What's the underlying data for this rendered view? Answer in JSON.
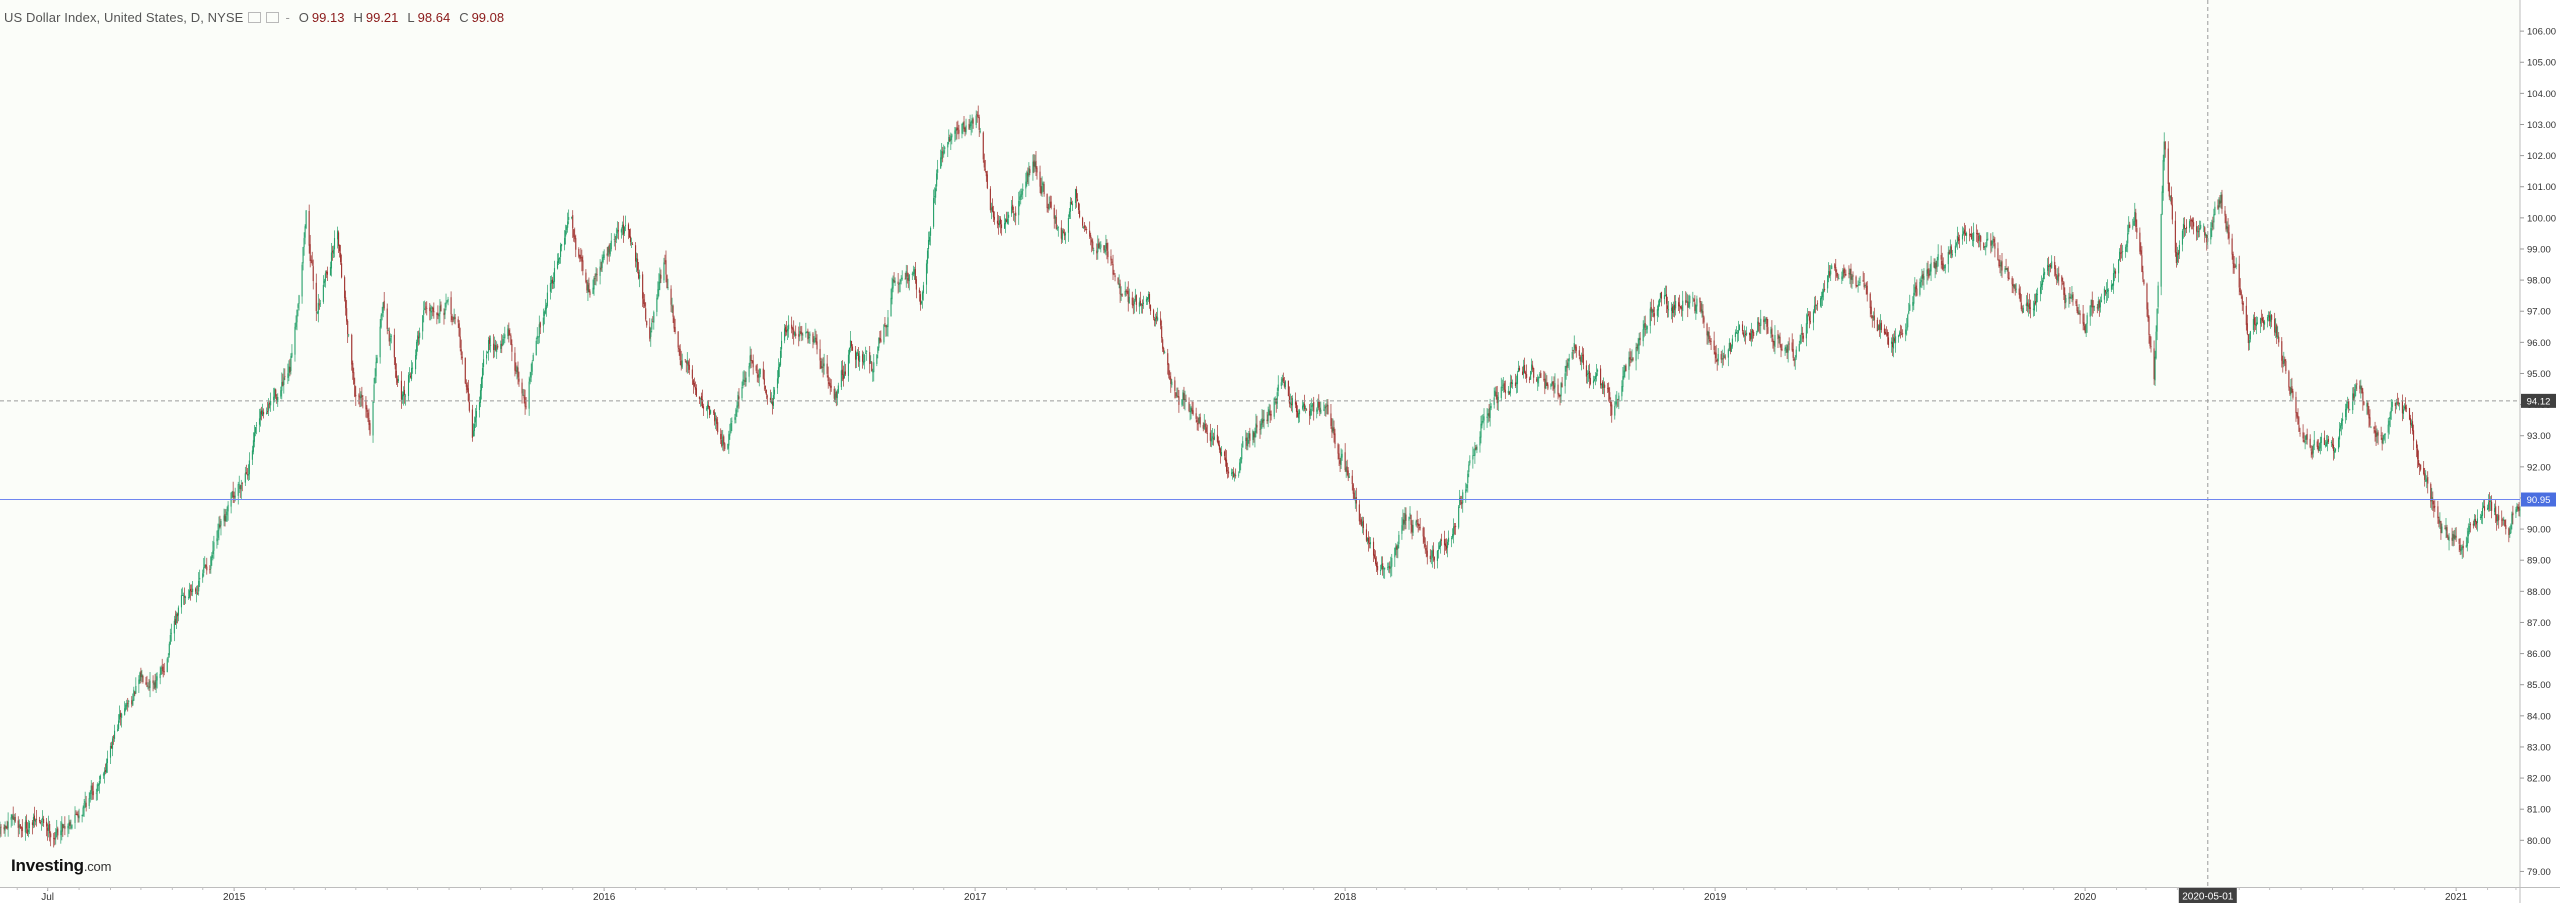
{
  "legend": {
    "title": "US Dollar Index, United States, D, NYSE",
    "open_label": "O",
    "open": "99.13",
    "high_label": "H",
    "high": "99.21",
    "low_label": "L",
    "low": "98.64",
    "close_label": "C",
    "close": "99.08",
    "menu_symbol": "-"
  },
  "branding": {
    "logo_main": "Investing",
    "logo_suffix": ".com"
  },
  "colors": {
    "up": "#26a06a",
    "down": "#a0322f",
    "background": "#fafcf8",
    "crosshair": "#9b9b9b",
    "last_price_line": "#6f86f0",
    "last_price_badge": "#4a6ee0",
    "crosshair_badge": "#404040"
  },
  "chart_data": {
    "type": "candlestick",
    "title": "US Dollar Index, United States, D, NYSE",
    "y_axis_position": "right",
    "ylim": [
      78.5,
      107.0
    ],
    "y_ticks": [
      "79.00",
      "80.00",
      "81.00",
      "82.00",
      "83.00",
      "84.00",
      "85.00",
      "86.00",
      "87.00",
      "88.00",
      "89.00",
      "90.00",
      "91.00",
      "92.00",
      "93.00",
      "94.00",
      "95.00",
      "96.00",
      "97.00",
      "98.00",
      "99.00",
      "100.00",
      "101.00",
      "102.00",
      "103.00",
      "104.00",
      "105.00",
      "106.00"
    ],
    "x_ticks": [
      "Jul",
      "2015",
      "2016",
      "2017",
      "2018",
      "2019",
      "2020",
      "2021"
    ],
    "x_tick_dates": [
      "2014-07-01",
      "2015-01-01",
      "2016-01-01",
      "2017-01-01",
      "2018-01-01",
      "2019-01-01",
      "2020-01-01",
      "2021-01-01"
    ],
    "x_range": [
      "2014-05-15",
      "2021-03-05"
    ],
    "crosshair": {
      "date_label": "2020-05-01",
      "date": "2020-05-01",
      "price_label": "94.12",
      "price": 94.12
    },
    "last_price": {
      "label": "90.95",
      "value": 90.95
    },
    "ohlc_hover": {
      "open": 99.13,
      "high": 99.21,
      "low": 98.64,
      "close": 99.08
    },
    "close_path": [
      [
        "2014-05-15",
        80.2
      ],
      [
        "2014-06-15",
        80.6
      ],
      [
        "2014-07-10",
        80.3
      ],
      [
        "2014-08-15",
        81.6
      ],
      [
        "2014-09-15",
        84.2
      ],
      [
        "2014-10-10",
        85.5
      ],
      [
        "2014-10-20",
        85.2
      ],
      [
        "2014-11-10",
        87.6
      ],
      [
        "2014-12-05",
        88.8
      ],
      [
        "2014-12-25",
        90.2
      ],
      [
        "2015-01-20",
        92.8
      ],
      [
        "2015-02-10",
        94.2
      ],
      [
        "2015-02-25",
        94.8
      ],
      [
        "2015-03-13",
        100.2
      ],
      [
        "2015-03-23",
        97.0
      ],
      [
        "2015-04-13",
        99.7
      ],
      [
        "2015-04-30",
        94.6
      ],
      [
        "2015-05-15",
        93.2
      ],
      [
        "2015-05-28",
        97.3
      ],
      [
        "2015-06-18",
        94.0
      ],
      [
        "2015-07-08",
        97.2
      ],
      [
        "2015-07-23",
        97.5
      ],
      [
        "2015-08-10",
        96.4
      ],
      [
        "2015-08-24",
        93.1
      ],
      [
        "2015-09-10",
        96.0
      ],
      [
        "2015-09-28",
        96.2
      ],
      [
        "2015-10-15",
        94.1
      ],
      [
        "2015-11-06",
        97.8
      ],
      [
        "2015-11-30",
        100.1
      ],
      [
        "2015-12-15",
        97.6
      ],
      [
        "2015-12-31",
        98.6
      ],
      [
        "2016-01-15",
        99.4
      ],
      [
        "2016-01-29",
        99.6
      ],
      [
        "2016-02-15",
        96.2
      ],
      [
        "2016-03-01",
        98.2
      ],
      [
        "2016-03-16",
        95.2
      ],
      [
        "2016-04-12",
        94.1
      ],
      [
        "2016-04-29",
        93.0
      ],
      [
        "2016-05-25",
        95.5
      ],
      [
        "2016-06-15",
        94.2
      ],
      [
        "2016-06-27",
        96.3
      ],
      [
        "2016-07-15",
        96.5
      ],
      [
        "2016-08-02",
        95.2
      ],
      [
        "2016-08-18",
        94.3
      ],
      [
        "2016-09-01",
        95.9
      ],
      [
        "2016-09-21",
        95.2
      ],
      [
        "2016-10-12",
        97.6
      ],
      [
        "2016-10-31",
        98.4
      ],
      [
        "2016-11-08",
        97.4
      ],
      [
        "2016-11-24",
        101.4
      ],
      [
        "2016-12-15",
        102.8
      ],
      [
        "2017-01-03",
        103.3
      ],
      [
        "2017-01-16",
        100.3
      ],
      [
        "2017-02-02",
        99.6
      ],
      [
        "2017-02-20",
        101.4
      ],
      [
        "2017-03-01",
        101.9
      ],
      [
        "2017-03-27",
        99.1
      ],
      [
        "2017-04-10",
        100.9
      ],
      [
        "2017-04-25",
        99.3
      ],
      [
        "2017-05-12",
        99.1
      ],
      [
        "2017-05-25",
        97.3
      ],
      [
        "2017-06-22",
        97.2
      ],
      [
        "2017-07-18",
        94.4
      ],
      [
        "2017-08-15",
        93.6
      ],
      [
        "2017-09-08",
        91.5
      ],
      [
        "2017-09-25",
        92.7
      ],
      [
        "2017-10-20",
        93.6
      ],
      [
        "2017-10-31",
        94.8
      ],
      [
        "2017-11-15",
        93.8
      ],
      [
        "2017-12-11",
        94.0
      ],
      [
        "2017-12-29",
        92.3
      ],
      [
        "2018-01-26",
        89.2
      ],
      [
        "2018-02-15",
        88.6
      ],
      [
        "2018-03-01",
        90.2
      ],
      [
        "2018-03-25",
        89.5
      ],
      [
        "2018-04-16",
        89.7
      ],
      [
        "2018-05-15",
        93.3
      ],
      [
        "2018-06-15",
        94.8
      ],
      [
        "2018-06-28",
        95.2
      ],
      [
        "2018-07-30",
        94.3
      ],
      [
        "2018-08-15",
        96.3
      ],
      [
        "2018-08-31",
        95.0
      ],
      [
        "2018-09-21",
        93.9
      ],
      [
        "2018-10-31",
        97.2
      ],
      [
        "2018-11-12",
        97.4
      ],
      [
        "2018-12-14",
        97.1
      ],
      [
        "2019-01-10",
        95.3
      ],
      [
        "2019-02-15",
        97.0
      ],
      [
        "2019-03-20",
        95.6
      ],
      [
        "2019-04-25",
        98.2
      ],
      [
        "2019-05-23",
        97.9
      ],
      [
        "2019-06-25",
        95.9
      ],
      [
        "2019-07-31",
        98.5
      ],
      [
        "2019-09-03",
        99.3
      ],
      [
        "2019-09-30",
        99.4
      ],
      [
        "2019-10-31",
        97.3
      ],
      [
        "2019-11-29",
        98.3
      ],
      [
        "2019-12-31",
        96.4
      ],
      [
        "2020-01-28",
        98.0
      ],
      [
        "2020-02-19",
        99.9
      ],
      [
        "2020-03-09",
        94.9
      ],
      [
        "2020-03-19",
        102.8
      ],
      [
        "2020-03-31",
        99.0
      ],
      [
        "2020-04-16",
        100.4
      ],
      [
        "2020-05-01",
        99.1
      ],
      [
        "2020-05-14",
        100.4
      ],
      [
        "2020-05-29",
        98.3
      ],
      [
        "2020-06-10",
        96.1
      ],
      [
        "2020-06-30",
        97.4
      ],
      [
        "2020-07-31",
        93.4
      ],
      [
        "2020-08-31",
        92.2
      ],
      [
        "2020-09-24",
        94.4
      ],
      [
        "2020-10-20",
        93.1
      ],
      [
        "2020-11-04",
        94.1
      ],
      [
        "2020-11-30",
        91.9
      ],
      [
        "2020-12-17",
        89.8
      ],
      [
        "2021-01-06",
        89.4
      ],
      [
        "2021-01-29",
        90.6
      ],
      [
        "2021-02-24",
        90.2
      ],
      [
        "2021-03-02",
        90.95
      ]
    ]
  }
}
